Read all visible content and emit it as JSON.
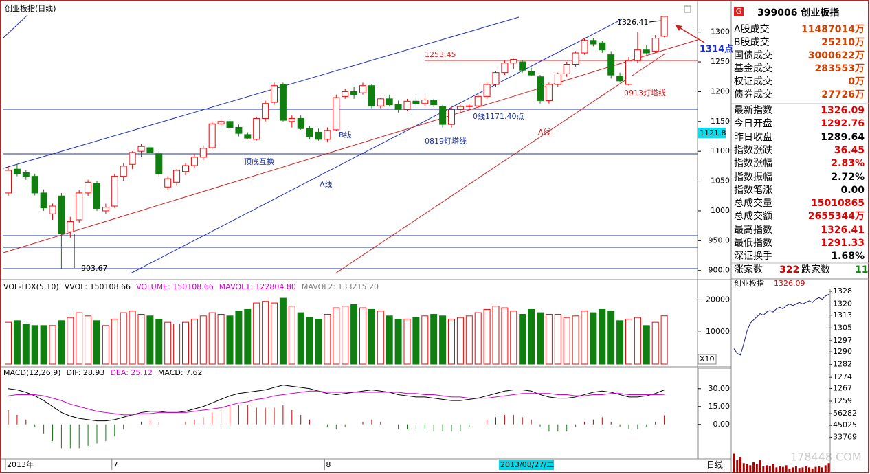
{
  "chart_data": [
    {
      "type": "candlestick",
      "title": "创业板指(日线)",
      "categories": [
        "2013年",
        null,
        null,
        null,
        null,
        null,
        null,
        null,
        null,
        null,
        null,
        null,
        "7",
        null,
        null,
        null,
        null,
        null,
        null,
        null,
        null,
        null,
        null,
        null,
        null,
        null,
        null,
        null,
        null,
        null,
        null,
        null,
        null,
        null,
        null,
        null,
        "8",
        null,
        null,
        null,
        null,
        null,
        null,
        null,
        null,
        null,
        null,
        null,
        null,
        null,
        null,
        null,
        null,
        null,
        null,
        null,
        null,
        null,
        null,
        null,
        null,
        null,
        null,
        null,
        null,
        null,
        null,
        null,
        null,
        null,
        null,
        null,
        null,
        null,
        null
      ],
      "cursor_date": "2013/08/27/二",
      "ohlc": [
        [
          1030,
          1075,
          1025,
          1068
        ],
        [
          1070,
          1078,
          1058,
          1062
        ],
        [
          1064,
          1068,
          1052,
          1058
        ],
        [
          1058,
          1062,
          1026,
          1030
        ],
        [
          1030,
          1036,
          1000,
          1005
        ],
        [
          995,
          1012,
          985,
          1008
        ],
        [
          1025,
          1030,
          903.67,
          962
        ],
        [
          965,
          990,
          955,
          982
        ],
        [
          985,
          1035,
          980,
          1030
        ],
        [
          1030,
          1052,
          1025,
          1048
        ],
        [
          1046,
          1050,
          1000,
          1004
        ],
        [
          1000,
          1012,
          995,
          1006
        ],
        [
          1008,
          1062,
          1005,
          1058
        ],
        [
          1058,
          1080,
          1050,
          1075
        ],
        [
          1078,
          1100,
          1070,
          1098
        ],
        [
          1100,
          1112,
          1090,
          1108
        ],
        [
          1106,
          1110,
          1095,
          1098
        ],
        [
          1096,
          1100,
          1058,
          1062
        ],
        [
          1040,
          1058,
          1035,
          1054
        ],
        [
          1048,
          1070,
          1042,
          1068
        ],
        [
          1066,
          1080,
          1060,
          1076
        ],
        [
          1076,
          1095,
          1072,
          1090
        ],
        [
          1090,
          1110,
          1085,
          1105
        ],
        [
          1106,
          1150,
          1104,
          1146
        ],
        [
          1146,
          1155,
          1140,
          1150
        ],
        [
          1150,
          1152,
          1138,
          1140
        ],
        [
          1140,
          1145,
          1125,
          1130
        ],
        [
          1128,
          1132,
          1120,
          1122
        ],
        [
          1120,
          1158,
          1118,
          1155
        ],
        [
          1155,
          1185,
          1150,
          1180
        ],
        [
          1182,
          1215,
          1178,
          1210
        ],
        [
          1212,
          1215,
          1150,
          1152
        ],
        [
          1150,
          1160,
          1140,
          1155
        ],
        [
          1155,
          1160,
          1136,
          1138
        ],
        [
          1138,
          1142,
          1120,
          1125
        ],
        [
          1132,
          1138,
          1118,
          1120
        ],
        [
          1120,
          1140,
          1115,
          1135
        ],
        [
          1136,
          1195,
          1134,
          1190
        ],
        [
          1192,
          1205,
          1188,
          1200
        ],
        [
          1200,
          1208,
          1188,
          1195
        ],
        [
          1198,
          1215,
          1195,
          1210
        ],
        [
          1210,
          1212,
          1172,
          1176
        ],
        [
          1176,
          1190,
          1172,
          1188
        ],
        [
          1188,
          1195,
          1175,
          1178
        ],
        [
          1178,
          1185,
          1165,
          1170
        ],
        [
          1170,
          1188,
          1168,
          1184
        ],
        [
          1184,
          1192,
          1175,
          1180
        ],
        [
          1180,
          1190,
          1176,
          1186
        ],
        [
          1186,
          1188,
          1174,
          1178
        ],
        [
          1175,
          1178,
          1140,
          1145
        ],
        [
          1145,
          1175,
          1140,
          1170
        ],
        [
          1170,
          1178,
          1165,
          1175
        ],
        [
          1175,
          1180,
          1170,
          1176
        ],
        [
          1176,
          1195,
          1172,
          1192
        ],
        [
          1192,
          1215,
          1188,
          1212
        ],
        [
          1212,
          1235,
          1208,
          1232
        ],
        [
          1232,
          1252,
          1228,
          1248
        ],
        [
          1248,
          1255,
          1238,
          1254
        ],
        [
          1250,
          1252,
          1232,
          1236
        ],
        [
          1234,
          1240,
          1226,
          1228
        ],
        [
          1225,
          1228,
          1180,
          1185
        ],
        [
          1185,
          1215,
          1180,
          1212
        ],
        [
          1212,
          1232,
          1208,
          1230
        ],
        [
          1230,
          1250,
          1225,
          1246
        ],
        [
          1246,
          1268,
          1242,
          1265
        ],
        [
          1265,
          1290,
          1262,
          1286
        ],
        [
          1286,
          1290,
          1276,
          1280
        ],
        [
          1282,
          1285,
          1265,
          1270
        ],
        [
          1262,
          1268,
          1222,
          1228
        ],
        [
          1226,
          1232,
          1215,
          1218
        ],
        [
          1212,
          1258,
          1210,
          1252
        ],
        [
          1252,
          1300,
          1248,
          1270
        ],
        [
          1270,
          1278,
          1262,
          1265
        ],
        [
          1268,
          1295,
          1265,
          1289.64
        ],
        [
          1292.76,
          1326.41,
          1291.33,
          1326.09
        ]
      ],
      "up_color": "#ff0000",
      "down_color": "#0f7f0f",
      "ylim": [
        887,
        1348
      ],
      "yticks": [
        1300,
        1250,
        1200,
        1150,
        1100,
        1050,
        1000,
        {
          "value": 950,
          "label": "950.0"
        },
        {
          "value": 900,
          "label": "900.0"
        }
      ]
    },
    {
      "type": "bar",
      "header": [
        {
          "text": "VOL-TDX(5,10)",
          "color": "#000000"
        },
        {
          "text": "VVOL: 150108.66",
          "color": "#000000"
        },
        {
          "text": "VOLUME: 150108.66",
          "color": "#d000d0"
        },
        {
          "text": "MAVOL1: 122804.80",
          "color": "#d000d0"
        },
        {
          "text": "MAVOL2: 133215.20",
          "color": "#808080"
        }
      ],
      "values": [
        13000,
        13500,
        12500,
        12000,
        12000,
        12000,
        13500,
        14500,
        16000,
        15000,
        13500,
        12000,
        14000,
        16000,
        16500,
        15500,
        15000,
        14000,
        13000,
        12500,
        13000,
        14000,
        15000,
        16000,
        15500,
        15000,
        16500,
        17000,
        19000,
        19500,
        19000,
        20500,
        18000,
        16000,
        14500,
        14000,
        15500,
        17500,
        18000,
        18500,
        17500,
        17000,
        16500,
        15000,
        14000,
        14000,
        14500,
        15000,
        15500,
        15000,
        14000,
        14500,
        15000,
        16000,
        17000,
        18000,
        17500,
        16500,
        15500,
        17000,
        16000,
        15500,
        15500,
        14500,
        15000,
        16500,
        16000,
        17000,
        16500,
        13500,
        14000,
        14500,
        12000,
        13000,
        15011
      ],
      "scale_note": "X10",
      "ylim": [
        0,
        25000
      ],
      "yticks": [
        20000,
        10000
      ]
    },
    {
      "type": "macd",
      "header": [
        {
          "text": "MACD(12,26,9)",
          "color": "#000000"
        },
        {
          "text": "DIF: 28.93",
          "color": "#000000"
        },
        {
          "text": "DEA: 25.12",
          "color": "#d000d0"
        },
        {
          "text": "MACD: 7.62",
          "color": "#000000"
        }
      ],
      "series": [
        {
          "color": "#000000",
          "values": [
            30,
            29,
            27,
            24,
            20,
            15,
            10,
            7,
            5,
            4,
            3,
            3,
            4,
            6,
            8,
            10,
            11,
            11,
            10,
            10,
            11,
            13,
            15,
            18,
            21,
            24,
            26,
            27,
            28,
            29,
            31,
            33,
            32,
            31,
            30,
            28,
            26,
            25,
            26,
            27,
            28,
            29,
            28,
            27,
            25,
            24,
            23,
            23,
            22,
            21,
            20,
            20,
            21,
            22,
            24,
            26,
            28,
            29,
            29,
            28,
            25,
            23,
            22,
            22,
            23,
            25,
            27,
            28,
            27,
            25,
            23,
            23,
            24,
            26,
            28.93
          ]
        },
        {
          "color": "#d000d0",
          "values": [
            24,
            25,
            25,
            25,
            24,
            22,
            20,
            17,
            15,
            13,
            11,
            10,
            9,
            8,
            8,
            9,
            9,
            10,
            10,
            10,
            10,
            11,
            12,
            13,
            14,
            16,
            18,
            19,
            21,
            22,
            24,
            25,
            26,
            27,
            28,
            28,
            27,
            27,
            27,
            27,
            27,
            27,
            27,
            27,
            27,
            26,
            26,
            25,
            25,
            24,
            23,
            23,
            22,
            22,
            22,
            23,
            24,
            25,
            26,
            26,
            26,
            26,
            25,
            25,
            24,
            24,
            25,
            25,
            26,
            26,
            25,
            25,
            25,
            25,
            25.12
          ]
        }
      ],
      "bars": [
        12,
        8,
        4,
        -2,
        -8,
        -14,
        -20,
        -20,
        -20,
        -18,
        -16,
        -14,
        -10,
        -4,
        0,
        2,
        4,
        2,
        0,
        0,
        2,
        4,
        6,
        10,
        14,
        16,
        16,
        16,
        14,
        14,
        14,
        16,
        12,
        8,
        4,
        0,
        -2,
        -4,
        -2,
        0,
        2,
        4,
        2,
        0,
        -4,
        -4,
        -6,
        -4,
        -6,
        -6,
        -6,
        -6,
        -2,
        0,
        4,
        6,
        8,
        8,
        6,
        4,
        -2,
        -6,
        -6,
        -6,
        -2,
        2,
        4,
        6,
        2,
        -2,
        -4,
        -4,
        -2,
        2,
        7.62
      ],
      "up_color": "#cc0000",
      "down_color": "#0f7f0f",
      "ylim": [
        -29,
        42
      ],
      "yticks": [
        {
          "value": 30,
          "label": "30.00"
        },
        {
          "value": 15,
          "label": "15.00"
        },
        {
          "value": 0,
          "label": "0.00"
        }
      ]
    },
    {
      "type": "intraday",
      "title": "创业板指",
      "last": "1326.09",
      "values": [
        1292,
        1289,
        1288,
        1295,
        1303,
        1308,
        1310,
        1312,
        1314,
        1313,
        1315,
        1316,
        1315,
        1317,
        1318,
        1317,
        1319,
        1320,
        1319,
        1320,
        1321,
        1320,
        1321,
        1322,
        1321,
        1323,
        1324,
        1323,
        1325,
        1326.09
      ],
      "color": "#1a1a80",
      "ylim": [
        1259,
        1328
      ],
      "yticks": [
        1328,
        1320,
        1313,
        1305,
        1297,
        1290,
        1282,
        1274,
        1267,
        1259
      ],
      "volume": [
        18000,
        12000,
        15000,
        9000,
        8000,
        7000,
        10000,
        8500,
        12000,
        6000,
        7000,
        6500,
        8000,
        5000,
        6000,
        5500,
        7000,
        4000,
        5000,
        6000,
        4500,
        5000,
        6500,
        5000,
        4000,
        5500,
        6000,
        5000,
        7000,
        9000
      ],
      "volume_color": "#b00000",
      "vlim": [
        0,
        56282
      ],
      "vticks": [
        56282,
        45025,
        33769
      ]
    }
  ],
  "annotations": {
    "high": "1326.41",
    "low": "903.67",
    "target": "1314点",
    "level": "1253.45",
    "l0913": "0913灯塔线",
    "l0": "0线1171.40点",
    "l0819": "0819灯塔线",
    "a1": "A线",
    "b": "B线",
    "swap": "顶底互换",
    "a2": "A线",
    "cursor_price": "1121.8",
    "period": "日线",
    "watermark": "178448.COM"
  },
  "quote": {
    "badge": "G",
    "code": "399006 创业板指",
    "trade": [
      {
        "label": "A股成交",
        "value": "11487014万"
      },
      {
        "label": "B股成交",
        "value": "25210万"
      },
      {
        "label": "国债成交",
        "value": "3000622万"
      },
      {
        "label": "基金成交",
        "value": "283553万"
      },
      {
        "label": "权证成交",
        "value": "0万"
      },
      {
        "label": "债券成交",
        "value": "27726万"
      }
    ],
    "index": [
      {
        "label": "最新指数",
        "value": "1326.09",
        "color": "#e00000"
      },
      {
        "label": "今日开盘",
        "value": "1292.76",
        "color": "#e00000"
      },
      {
        "label": "昨日收盘",
        "value": "1289.64",
        "color": "#000000"
      },
      {
        "label": "指数涨跌",
        "value": "36.45",
        "color": "#e00000"
      },
      {
        "label": "指数涨幅",
        "value": "2.83%",
        "color": "#e00000"
      },
      {
        "label": "指数振幅",
        "value": "2.72%",
        "color": "#000000"
      },
      {
        "label": "指数笔涨",
        "value": "0.00",
        "color": "#000000"
      },
      {
        "label": "总成交量",
        "value": "15010865",
        "color": "#e00000"
      },
      {
        "label": "总成交额",
        "value": "2655344万",
        "color": "#e00000"
      },
      {
        "label": "最高指数",
        "value": "1326.41",
        "color": "#e00000"
      },
      {
        "label": "最低指数",
        "value": "1291.33",
        "color": "#e00000"
      },
      {
        "label": "深证换手",
        "value": "1.68%",
        "color": "#000000"
      }
    ],
    "breadth": {
      "up_label": "涨家数",
      "up": "322",
      "down_label": "跌家数",
      "down": "11"
    }
  }
}
